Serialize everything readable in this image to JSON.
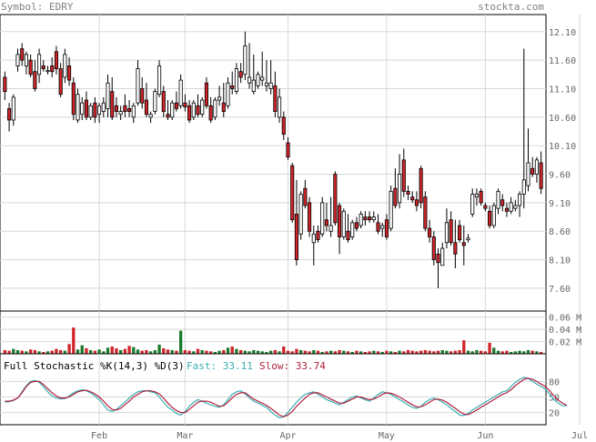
{
  "header": {
    "symbol": "Symbol: EDRY",
    "source": "stockta.com"
  },
  "chart_data": [
    {
      "type": "candlestick",
      "ylim": [
        7.2,
        12.4
      ],
      "y_ticks": [
        7.6,
        8.1,
        8.6,
        9.1,
        9.6,
        10.1,
        10.6,
        11.1,
        11.6,
        12.1
      ],
      "x_months": [
        {
          "label": "Feb",
          "index": 22
        },
        {
          "label": "Mar",
          "index": 42
        },
        {
          "label": "Apr",
          "index": 66
        },
        {
          "label": "May",
          "index": 89
        },
        {
          "label": "Jun",
          "index": 112
        },
        {
          "label": "Jul",
          "index": 134
        }
      ],
      "grid": true,
      "bars": [
        [
          11.3,
          11.4,
          10.9,
          11.05
        ],
        [
          10.75,
          10.85,
          10.35,
          10.55
        ],
        [
          10.55,
          11.0,
          10.45,
          10.95
        ],
        [
          11.5,
          11.8,
          11.4,
          11.7
        ],
        [
          11.8,
          11.9,
          11.5,
          11.6
        ],
        [
          11.5,
          11.75,
          11.35,
          11.7
        ],
        [
          11.6,
          11.7,
          11.3,
          11.35
        ],
        [
          11.4,
          11.6,
          11.05,
          11.1
        ],
        [
          11.35,
          11.8,
          11.2,
          11.7
        ],
        [
          11.5,
          11.6,
          11.4,
          11.45
        ],
        [
          11.4,
          11.5,
          11.35,
          11.42
        ],
        [
          11.5,
          11.65,
          11.3,
          11.4
        ],
        [
          11.75,
          11.85,
          11.35,
          11.45
        ],
        [
          11.45,
          11.55,
          10.95,
          11.0
        ],
        [
          11.3,
          11.8,
          11.2,
          11.7
        ],
        [
          11.5,
          11.65,
          11.15,
          11.25
        ],
        [
          11.2,
          11.3,
          10.55,
          10.65
        ],
        [
          10.55,
          11.1,
          10.5,
          11.0
        ],
        [
          10.65,
          10.95,
          10.55,
          10.85
        ],
        [
          10.9,
          11.05,
          10.55,
          10.6
        ],
        [
          10.6,
          10.85,
          10.55,
          10.8
        ],
        [
          10.85,
          10.95,
          10.5,
          10.6
        ],
        [
          10.65,
          10.85,
          10.5,
          10.8
        ],
        [
          10.7,
          10.95,
          10.6,
          10.85
        ],
        [
          10.75,
          11.35,
          10.6,
          11.2
        ],
        [
          11.05,
          11.3,
          10.55,
          10.6
        ],
        [
          10.8,
          10.95,
          10.6,
          10.7
        ],
        [
          10.65,
          10.8,
          10.55,
          10.7
        ],
        [
          10.8,
          11.0,
          10.6,
          10.7
        ],
        [
          10.75,
          10.9,
          10.6,
          10.7
        ],
        [
          10.6,
          10.85,
          10.5,
          10.8
        ],
        [
          10.85,
          11.6,
          10.8,
          11.45
        ],
        [
          11.1,
          11.3,
          10.75,
          10.85
        ],
        [
          10.9,
          11.2,
          10.6,
          10.65
        ],
        [
          10.6,
          10.7,
          10.5,
          10.65
        ],
        [
          10.7,
          11.1,
          10.65,
          11.05
        ],
        [
          11.0,
          11.6,
          10.95,
          11.5
        ],
        [
          11.05,
          11.15,
          10.6,
          10.7
        ],
        [
          10.65,
          10.9,
          10.55,
          10.6
        ],
        [
          10.6,
          10.9,
          10.55,
          10.85
        ],
        [
          10.85,
          11.05,
          10.7,
          10.75
        ],
        [
          10.8,
          11.35,
          10.75,
          11.25
        ],
        [
          10.85,
          11.0,
          10.7,
          10.78
        ],
        [
          10.8,
          10.9,
          10.5,
          10.55
        ],
        [
          10.6,
          10.9,
          10.55,
          10.85
        ],
        [
          10.8,
          11.0,
          10.6,
          10.65
        ],
        [
          10.65,
          10.95,
          10.6,
          10.9
        ],
        [
          11.2,
          11.3,
          10.75,
          10.8
        ],
        [
          10.8,
          10.95,
          10.5,
          10.55
        ],
        [
          10.6,
          10.95,
          10.55,
          10.9
        ],
        [
          10.9,
          11.15,
          10.8,
          10.95
        ],
        [
          10.85,
          11.2,
          10.6,
          10.7
        ],
        [
          10.8,
          11.3,
          10.75,
          11.2
        ],
        [
          11.15,
          11.4,
          11.0,
          11.1
        ],
        [
          11.05,
          11.55,
          11.0,
          11.45
        ],
        [
          11.4,
          11.55,
          11.2,
          11.3
        ],
        [
          11.35,
          12.1,
          11.25,
          11.85
        ],
        [
          11.2,
          11.9,
          11.1,
          11.3
        ],
        [
          11.05,
          11.7,
          11.0,
          11.25
        ],
        [
          11.15,
          11.4,
          11.1,
          11.35
        ],
        [
          11.25,
          11.75,
          11.15,
          11.3
        ],
        [
          11.15,
          11.6,
          11.05,
          11.2
        ],
        [
          11.1,
          11.6,
          11.0,
          11.2
        ],
        [
          11.15,
          11.4,
          10.6,
          10.7
        ],
        [
          10.6,
          11.1,
          10.5,
          10.95
        ],
        [
          10.6,
          10.7,
          10.2,
          10.3
        ],
        [
          10.15,
          10.25,
          9.85,
          9.9
        ],
        [
          9.75,
          9.8,
          8.75,
          8.8
        ],
        [
          8.9,
          9.5,
          8.0,
          8.1
        ],
        [
          8.55,
          9.3,
          8.45,
          9.25
        ],
        [
          9.35,
          9.5,
          9.0,
          9.05
        ],
        [
          9.1,
          9.2,
          8.5,
          8.6
        ],
        [
          8.4,
          8.7,
          8.0,
          8.55
        ],
        [
          8.6,
          8.7,
          8.4,
          8.45
        ],
        [
          8.55,
          9.2,
          8.5,
          9.1
        ],
        [
          8.8,
          9.1,
          8.6,
          8.7
        ],
        [
          8.6,
          9.2,
          8.5,
          8.7
        ],
        [
          9.6,
          9.65,
          8.7,
          8.75
        ],
        [
          9.05,
          9.1,
          8.2,
          8.5
        ],
        [
          8.5,
          9.0,
          8.45,
          8.95
        ],
        [
          8.6,
          8.9,
          8.4,
          8.45
        ],
        [
          8.5,
          8.8,
          8.45,
          8.75
        ],
        [
          8.75,
          8.85,
          8.6,
          8.65
        ],
        [
          8.7,
          8.95,
          8.65,
          8.9
        ],
        [
          8.85,
          8.95,
          8.7,
          8.8
        ],
        [
          8.85,
          8.95,
          8.75,
          8.8
        ],
        [
          8.8,
          8.95,
          8.75,
          8.85
        ],
        [
          8.75,
          8.9,
          8.55,
          8.6
        ],
        [
          8.65,
          8.75,
          8.5,
          8.7
        ],
        [
          8.8,
          8.9,
          8.45,
          8.5
        ],
        [
          8.65,
          9.4,
          8.6,
          9.3
        ],
        [
          9.35,
          9.7,
          9.0,
          9.05
        ],
        [
          9.1,
          9.95,
          9.0,
          9.6
        ],
        [
          9.85,
          10.05,
          9.2,
          9.3
        ],
        [
          9.3,
          9.4,
          9.15,
          9.25
        ],
        [
          9.2,
          9.3,
          9.1,
          9.15
        ],
        [
          9.15,
          9.3,
          8.95,
          9.05
        ],
        [
          9.7,
          9.75,
          9.0,
          9.1
        ],
        [
          9.2,
          9.3,
          8.6,
          8.65
        ],
        [
          8.65,
          8.8,
          8.4,
          8.5
        ],
        [
          8.5,
          8.6,
          8.0,
          8.1
        ],
        [
          8.2,
          8.3,
          7.6,
          8.05
        ],
        [
          8.0,
          8.4,
          8.0,
          8.3
        ],
        [
          8.4,
          9.0,
          8.3,
          8.75
        ],
        [
          8.8,
          8.95,
          8.35,
          8.4
        ],
        [
          8.4,
          8.8,
          7.95,
          8.2
        ],
        [
          8.7,
          8.8,
          8.4,
          8.45
        ],
        [
          8.4,
          8.7,
          8.0,
          8.35
        ],
        [
          8.45,
          8.55,
          8.4,
          8.48
        ],
        [
          8.9,
          9.35,
          8.85,
          9.25
        ],
        [
          9.2,
          9.35,
          9.05,
          9.25
        ],
        [
          9.3,
          9.35,
          9.05,
          9.1
        ],
        [
          9.05,
          9.1,
          8.95,
          9.0
        ],
        [
          8.95,
          9.05,
          8.65,
          8.7
        ],
        [
          8.7,
          9.1,
          8.65,
          9.05
        ],
        [
          9.0,
          9.35,
          8.9,
          9.3
        ],
        [
          9.15,
          9.25,
          8.95,
          9.05
        ],
        [
          9.0,
          9.1,
          8.85,
          8.95
        ],
        [
          8.95,
          9.2,
          8.9,
          9.1
        ],
        [
          9.0,
          9.15,
          8.95,
          9.05
        ],
        [
          9.05,
          9.3,
          8.85,
          9.25
        ],
        [
          9.25,
          11.8,
          9.0,
          9.5
        ],
        [
          9.4,
          10.4,
          9.3,
          9.8
        ],
        [
          9.7,
          9.9,
          9.55,
          9.6
        ],
        [
          9.6,
          9.9,
          9.45,
          9.85
        ],
        [
          9.8,
          10.0,
          9.25,
          9.35
        ]
      ],
      "colors": {
        "up": "#ffffff",
        "down": "#d0242a",
        "outline": "#000000"
      }
    },
    {
      "type": "bar",
      "name": "Volume",
      "y_ticks": [
        "0.06 M",
        "0.04 M",
        "0.02 M"
      ],
      "ylim": [
        0,
        0.07
      ],
      "values": [
        0.006,
        0.005,
        0.008,
        0.006,
        0.005,
        0.004,
        0.007,
        0.006,
        0.004,
        0.003,
        0.004,
        0.005,
        0.008,
        0.006,
        0.005,
        0.016,
        0.043,
        0.007,
        0.014,
        0.009,
        0.006,
        0.005,
        0.007,
        0.004,
        0.01,
        0.012,
        0.009,
        0.006,
        0.008,
        0.013,
        0.011,
        0.007,
        0.005,
        0.006,
        0.004,
        0.006,
        0.015,
        0.009,
        0.007,
        0.006,
        0.005,
        0.038,
        0.006,
        0.005,
        0.004,
        0.008,
        0.006,
        0.005,
        0.004,
        0.003,
        0.005,
        0.006,
        0.01,
        0.012,
        0.008,
        0.006,
        0.005,
        0.004,
        0.006,
        0.005,
        0.004,
        0.003,
        0.005,
        0.006,
        0.004,
        0.012,
        0.005,
        0.004,
        0.008,
        0.006,
        0.005,
        0.004,
        0.006,
        0.005,
        0.003,
        0.004,
        0.005,
        0.004,
        0.006,
        0.005,
        0.004,
        0.003,
        0.005,
        0.004,
        0.003,
        0.004,
        0.005,
        0.004,
        0.003,
        0.005,
        0.004,
        0.003,
        0.005,
        0.004,
        0.006,
        0.005,
        0.004,
        0.005,
        0.006,
        0.005,
        0.004,
        0.005,
        0.006,
        0.005,
        0.004,
        0.005,
        0.006,
        0.022,
        0.005,
        0.004,
        0.006,
        0.005,
        0.004,
        0.018,
        0.01,
        0.005,
        0.004,
        0.005,
        0.003,
        0.004,
        0.005,
        0.004,
        0.006,
        0.005,
        0.004,
        0.003,
        0.005,
        0.004,
        0.008,
        0.007,
        0.006,
        0.005,
        0.004,
        0.005
      ]
    },
    {
      "type": "line",
      "title": "Full Stochastic %K(14,3) %D(3)",
      "fast_label": "Fast: 33.11",
      "slow_label": "Slow: 33.74",
      "ylim": [
        0,
        100
      ],
      "y_ticks": [
        20,
        50,
        80
      ],
      "series": [
        {
          "name": "Fast",
          "color": "#3aaeb4",
          "values": [
            40,
            41,
            43,
            48,
            60,
            72,
            80,
            82,
            78,
            70,
            60,
            52,
            48,
            46,
            47,
            52,
            58,
            62,
            64,
            62,
            58,
            52,
            45,
            35,
            25,
            22,
            26,
            33,
            40,
            48,
            55,
            60,
            62,
            62,
            60,
            58,
            50,
            40,
            30,
            25,
            18,
            15,
            22,
            32,
            40,
            45,
            42,
            38,
            35,
            32,
            30,
            35,
            45,
            55,
            60,
            62,
            56,
            48,
            42,
            38,
            34,
            30,
            22,
            15,
            10,
            12,
            20,
            30,
            40,
            48,
            55,
            58,
            60,
            55,
            50,
            45,
            42,
            38,
            35,
            40,
            45,
            50,
            52,
            48,
            45,
            42,
            48,
            55,
            60,
            58,
            55,
            50,
            45,
            40,
            35,
            30,
            28,
            32,
            40,
            45,
            48,
            45,
            40,
            35,
            28,
            22,
            15,
            14,
            18,
            25,
            30,
            35,
            40,
            45,
            50,
            55,
            60,
            62,
            70,
            78,
            84,
            88,
            86,
            80,
            75,
            70,
            65,
            55,
            45,
            38,
            33,
            33
          ]
        },
        {
          "name": "Slow",
          "color": "#b0203c",
          "values": [
            42,
            42,
            44,
            48,
            58,
            70,
            78,
            80,
            80,
            74,
            66,
            58,
            52,
            48,
            48,
            50,
            55,
            60,
            62,
            63,
            60,
            56,
            50,
            42,
            33,
            26,
            25,
            28,
            35,
            42,
            50,
            55,
            60,
            62,
            62,
            60,
            56,
            48,
            38,
            30,
            24,
            20,
            20,
            26,
            33,
            40,
            42,
            42,
            40,
            36,
            32,
            33,
            40,
            48,
            55,
            58,
            58,
            52,
            46,
            42,
            38,
            34,
            28,
            22,
            15,
            12,
            15,
            22,
            32,
            40,
            48,
            55,
            58,
            58,
            54,
            50,
            46,
            42,
            38,
            38,
            42,
            46,
            50,
            50,
            47,
            45,
            46,
            50,
            55,
            58,
            57,
            54,
            50,
            45,
            40,
            35,
            31,
            31,
            35,
            40,
            45,
            46,
            44,
            40,
            34,
            28,
            22,
            17,
            16,
            20,
            25,
            30,
            35,
            40,
            45,
            50,
            55,
            58,
            64,
            72,
            78,
            84,
            86,
            84,
            80,
            75,
            70,
            62,
            52,
            44,
            38,
            34
          ]
        }
      ]
    }
  ]
}
